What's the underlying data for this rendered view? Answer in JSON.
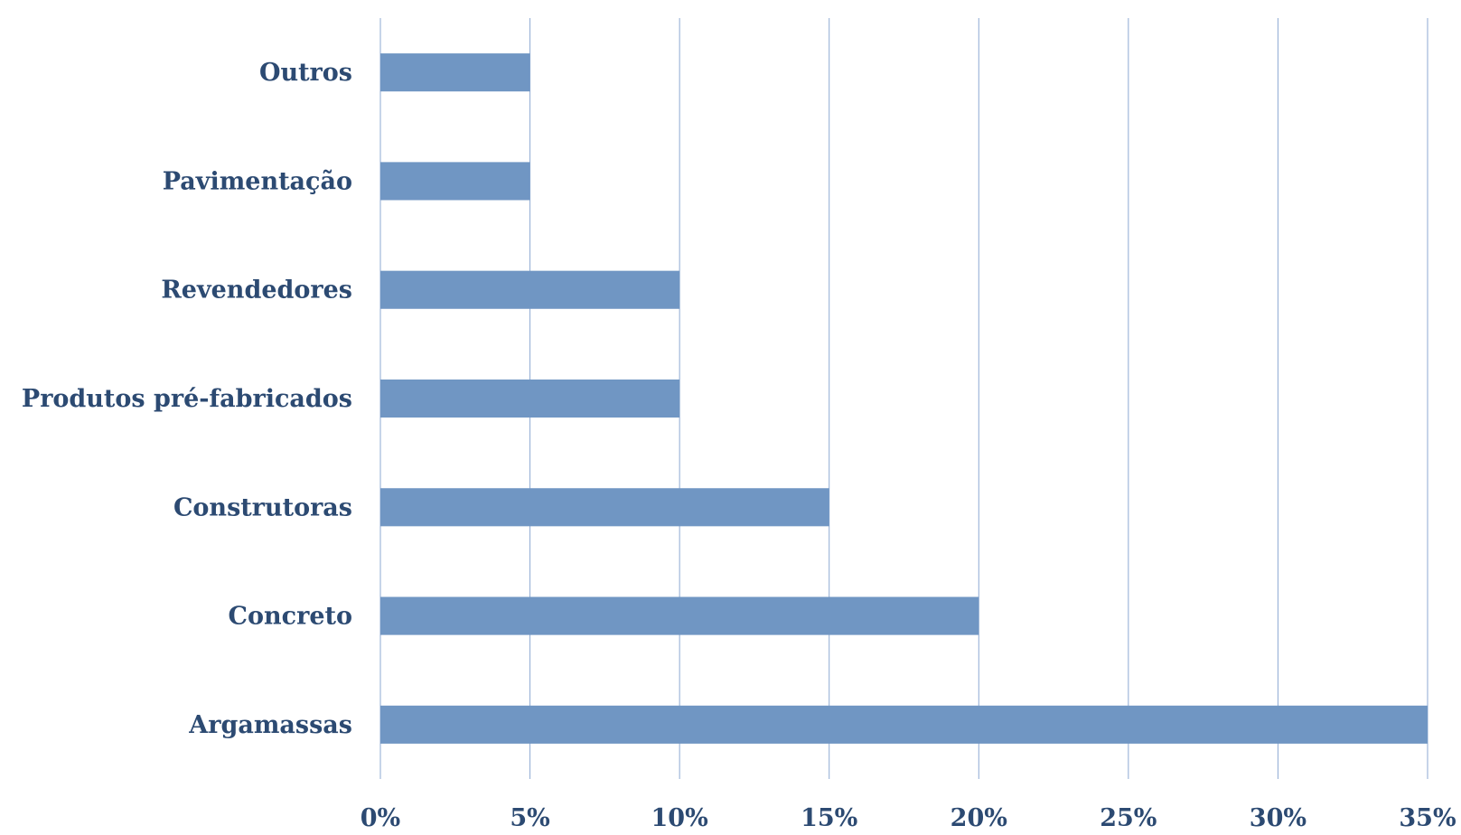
{
  "chart_data": {
    "type": "bar",
    "orientation": "horizontal",
    "categories": [
      "Outros",
      "Pavimentação",
      "Revendedores",
      "Produtos pré-fabricados",
      "Construtoras",
      "Concreto",
      "Argamassas"
    ],
    "values": [
      5,
      5,
      10,
      10,
      15,
      20,
      35
    ],
    "title": "",
    "xlabel": "",
    "ylabel": "",
    "xlim": [
      0,
      35
    ],
    "x_ticks": [
      "0%",
      "5%",
      "10%",
      "15%",
      "20%",
      "25%",
      "30%",
      "35%"
    ],
    "grid": "vertical",
    "legend": "none",
    "colors": {
      "bar": "#7096c3",
      "grid": "#8eaad3",
      "text": "#2c4a72"
    }
  }
}
